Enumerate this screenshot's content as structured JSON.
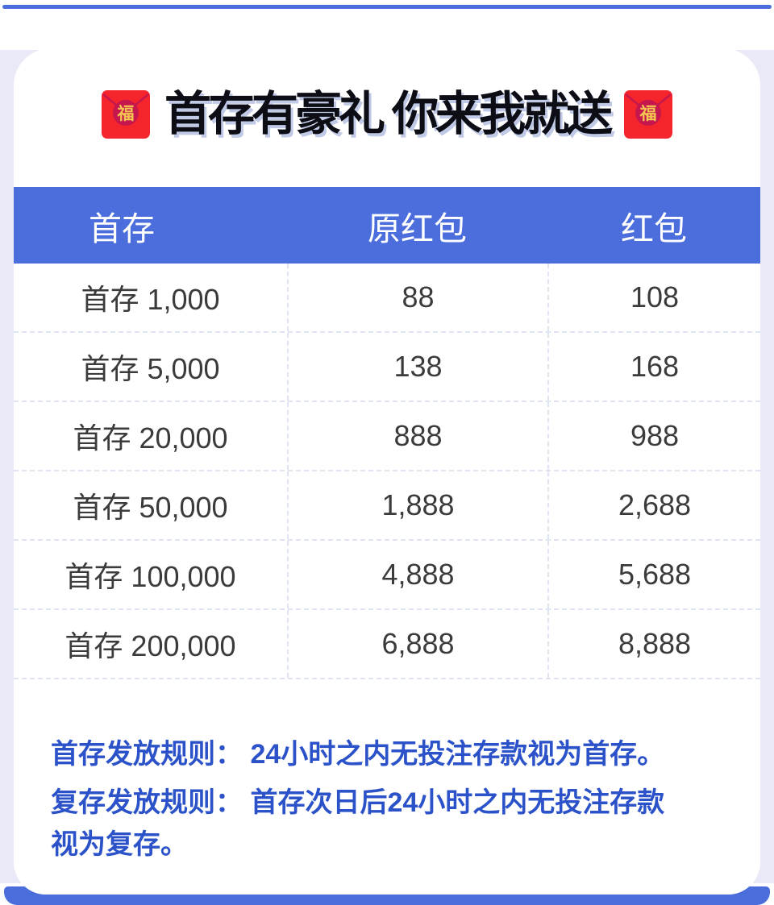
{
  "title": {
    "text": "首存有豪礼 你来我就送",
    "envelope_char": "福"
  },
  "table": {
    "headers": [
      "首存",
      "原红包",
      "红包"
    ],
    "rows": [
      [
        "首存 1,000",
        "88",
        "108"
      ],
      [
        "首存 5,000",
        "138",
        "168"
      ],
      [
        "首存 20,000",
        "888",
        "988"
      ],
      [
        "首存 50,000",
        "1,888",
        "2,688"
      ],
      [
        "首存 100,000",
        "4,888",
        "5,688"
      ],
      [
        "首存 200,000",
        "6,888",
        "8,888"
      ]
    ]
  },
  "rules": {
    "lines": [
      "首存发放规则： 24小时之内无投注存款视为首存。",
      "复存发放规则： 首存次日后24小时之内无投注存款",
      "视为复存。"
    ]
  },
  "colors": {
    "accent_blue": "#4c6edd",
    "backdrop_lavender": "#e9e9f8",
    "card_white": "#ffffff",
    "grid_line": "#dfe4f2",
    "cell_text": "#3b3b3b",
    "rules_blue": "#2b52c8",
    "title_black": "#0d0d15",
    "envelope_red": "#f5252d",
    "envelope_dark_red": "#c6164e",
    "envelope_gold": "#f3c653"
  }
}
